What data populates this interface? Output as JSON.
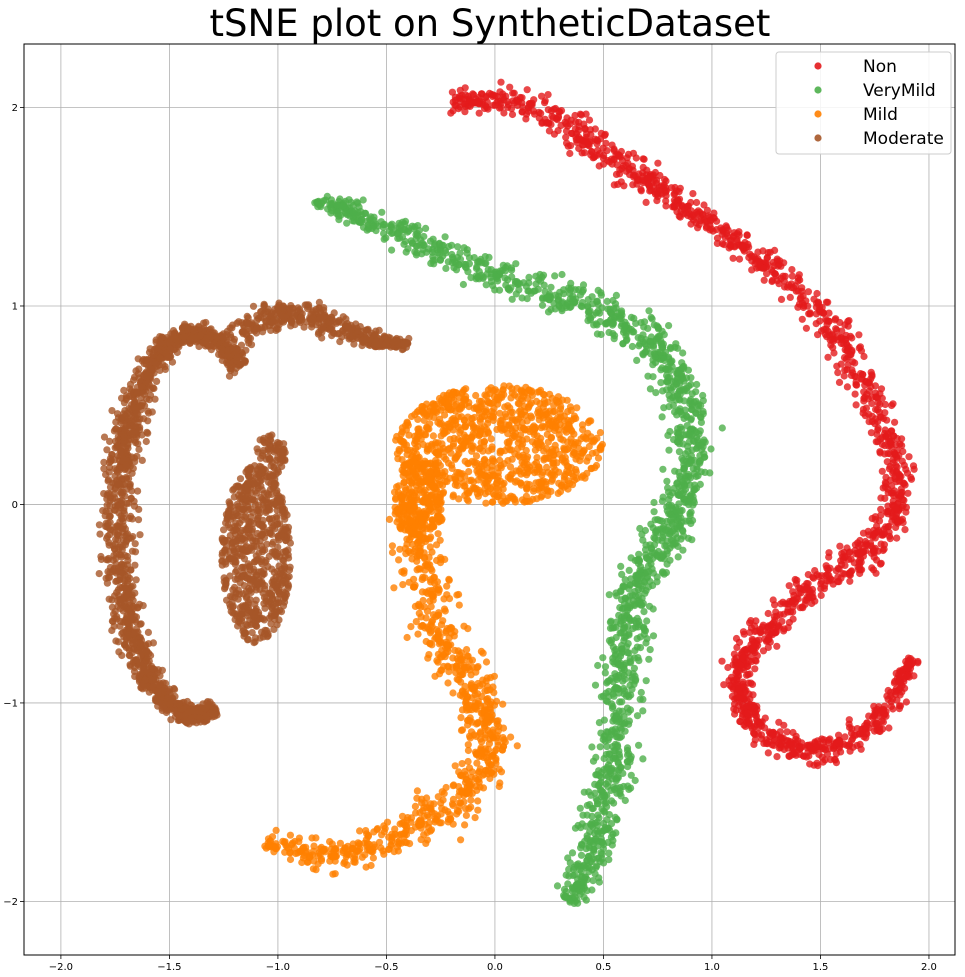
{
  "chart_data": {
    "type": "scatter",
    "title": "tSNE plot on SyntheticDataset",
    "xlabel": "",
    "ylabel": "",
    "xlim": [
      -2.17,
      2.12
    ],
    "ylim": [
      -2.27,
      2.32
    ],
    "grid": true,
    "legend_placement": "top-right",
    "x_ticks": [
      -2.0,
      -1.5,
      -1.0,
      -0.5,
      0.0,
      0.5,
      1.0,
      1.5,
      2.0
    ],
    "x_tick_labels": [
      "−2.0",
      "−1.5",
      "−1.0",
      "−0.5",
      "0.0",
      "0.5",
      "1.0",
      "1.5",
      "2.0"
    ],
    "y_ticks": [
      -2,
      -1,
      0,
      1,
      2
    ],
    "y_tick_labels": [
      "−2",
      "−1",
      "0",
      "1",
      "2"
    ],
    "series": [
      {
        "name": "Non",
        "color": "#e31a1c",
        "path": [
          [
            -0.2,
            2.02
          ],
          [
            0.05,
            2.05
          ],
          [
            0.35,
            1.9
          ],
          [
            0.55,
            1.75
          ],
          [
            0.75,
            1.6
          ],
          [
            0.95,
            1.45
          ],
          [
            1.2,
            1.25
          ],
          [
            1.45,
            1.05
          ],
          [
            1.6,
            0.8
          ],
          [
            1.75,
            0.5
          ],
          [
            1.85,
            0.2
          ],
          [
            1.85,
            -0.05
          ],
          [
            1.7,
            -0.25
          ],
          [
            1.5,
            -0.38
          ],
          [
            1.3,
            -0.6
          ],
          [
            1.15,
            -0.75
          ],
          [
            1.12,
            -0.95
          ],
          [
            1.2,
            -1.12
          ],
          [
            1.4,
            -1.25
          ],
          [
            1.6,
            -1.22
          ],
          [
            1.8,
            -1.05
          ],
          [
            1.93,
            -0.77
          ]
        ],
        "half_widths": [
          0.04,
          0.07,
          0.07,
          0.07,
          0.06,
          0.05,
          0.05,
          0.06,
          0.07,
          0.07,
          0.06,
          0.05,
          0.07,
          0.06,
          0.06,
          0.06,
          0.05,
          0.05,
          0.05,
          0.05,
          0.05,
          0.03
        ],
        "points_per_segment": 75
      },
      {
        "name": "VeryMild",
        "color": "#4daf4a",
        "path": [
          [
            -0.82,
            1.53
          ],
          [
            -0.6,
            1.45
          ],
          [
            -0.3,
            1.3
          ],
          [
            0.0,
            1.15
          ],
          [
            0.3,
            1.05
          ],
          [
            0.55,
            0.95
          ],
          [
            0.75,
            0.8
          ],
          [
            0.85,
            0.6
          ],
          [
            0.92,
            0.35
          ],
          [
            0.88,
            0.1
          ],
          [
            0.82,
            -0.1
          ],
          [
            0.72,
            -0.3
          ],
          [
            0.62,
            -0.5
          ],
          [
            0.6,
            -0.75
          ],
          [
            0.58,
            -1.0
          ],
          [
            0.55,
            -1.3
          ],
          [
            0.5,
            -1.55
          ],
          [
            0.45,
            -1.8
          ],
          [
            0.33,
            -2.0
          ]
        ],
        "half_widths": [
          0.02,
          0.06,
          0.06,
          0.07,
          0.07,
          0.07,
          0.08,
          0.08,
          0.08,
          0.08,
          0.08,
          0.08,
          0.08,
          0.08,
          0.08,
          0.08,
          0.08,
          0.07,
          0.05
        ],
        "points_per_segment": 85
      },
      {
        "name": "Mild",
        "color": "#ff7f00",
        "blobs": [
          {
            "cx": 0.02,
            "cy": 0.3,
            "rx": 0.48,
            "ry": 0.3,
            "n": 900
          },
          {
            "cx": -0.35,
            "cy": 0.02,
            "rx": 0.12,
            "ry": 0.22,
            "n": 220
          }
        ],
        "path": [
          [
            -0.38,
            0.05
          ],
          [
            -0.35,
            -0.2
          ],
          [
            -0.3,
            -0.45
          ],
          [
            -0.25,
            -0.7
          ],
          [
            -0.12,
            -0.88
          ],
          [
            -0.05,
            -1.05
          ],
          [
            -0.02,
            -1.25
          ],
          [
            -0.12,
            -1.45
          ],
          [
            -0.3,
            -1.6
          ],
          [
            -0.55,
            -1.72
          ],
          [
            -0.78,
            -1.78
          ],
          [
            -1.05,
            -1.7
          ]
        ],
        "half_widths": [
          0.09,
          0.1,
          0.1,
          0.09,
          0.08,
          0.07,
          0.08,
          0.09,
          0.1,
          0.08,
          0.06,
          0.04
        ],
        "points_per_segment": 75
      },
      {
        "name": "Moderate",
        "color": "#a65628",
        "arc": {
          "cx": -1.38,
          "cy": -0.1,
          "rx": 0.36,
          "ry": 0.96,
          "start_deg": 55,
          "end_deg": 285,
          "half_width": 0.065,
          "n": 1500
        },
        "path": [
          [
            -1.2,
            0.83
          ],
          [
            -1.02,
            0.96
          ],
          [
            -0.85,
            0.95
          ],
          [
            -0.7,
            0.88
          ],
          [
            -0.55,
            0.82
          ],
          [
            -0.4,
            0.81
          ]
        ],
        "half_widths": [
          0.06,
          0.06,
          0.05,
          0.05,
          0.04,
          0.02
        ],
        "points_per_segment": 80,
        "blobs": [
          {
            "cx": -1.1,
            "cy": -0.25,
            "rx": 0.16,
            "ry": 0.45,
            "n": 650
          },
          {
            "cx": -1.03,
            "cy": 0.25,
            "rx": 0.07,
            "ry": 0.12,
            "n": 70
          }
        ]
      }
    ]
  }
}
